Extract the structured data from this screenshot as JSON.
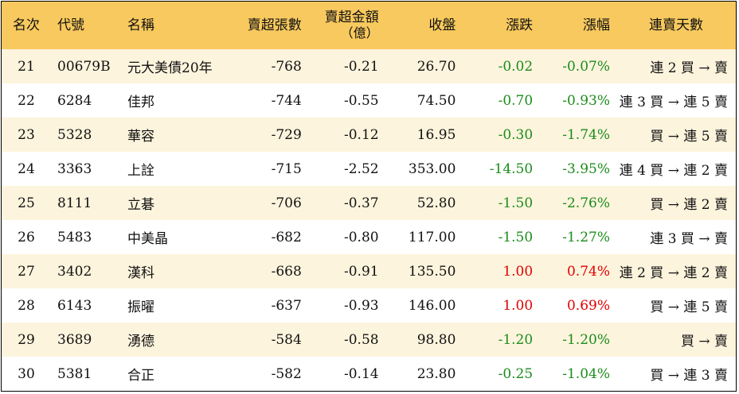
{
  "headers": {
    "rank": "名次",
    "code": "代號",
    "name": "名稱",
    "sell_vol": "賣超張數",
    "sell_amt_line1": "賣超金額",
    "sell_amt_line2": "（億）",
    "close": "收盤",
    "change": "漲跌",
    "pct": "漲幅",
    "streak": "連賣天數"
  },
  "rows": [
    {
      "rank": "21",
      "code": "00679B",
      "name": "元大美債20年",
      "sell_vol": "-768",
      "sell_amt": "-0.21",
      "close": "26.70",
      "change": "-0.02",
      "pct": "-0.07%",
      "streak": "連 2 買 → 賣",
      "dir": "neg"
    },
    {
      "rank": "22",
      "code": "6284",
      "name": "佳邦",
      "sell_vol": "-744",
      "sell_amt": "-0.55",
      "close": "74.50",
      "change": "-0.70",
      "pct": "-0.93%",
      "streak": "連 3 買 → 連 5 賣",
      "dir": "neg"
    },
    {
      "rank": "23",
      "code": "5328",
      "name": "華容",
      "sell_vol": "-729",
      "sell_amt": "-0.12",
      "close": "16.95",
      "change": "-0.30",
      "pct": "-1.74%",
      "streak": "買 → 連 5 賣",
      "dir": "neg"
    },
    {
      "rank": "24",
      "code": "3363",
      "name": "上詮",
      "sell_vol": "-715",
      "sell_amt": "-2.52",
      "close": "353.00",
      "change": "-14.50",
      "pct": "-3.95%",
      "streak": "連 4 買 → 連 2 賣",
      "dir": "neg"
    },
    {
      "rank": "25",
      "code": "8111",
      "name": "立碁",
      "sell_vol": "-706",
      "sell_amt": "-0.37",
      "close": "52.80",
      "change": "-1.50",
      "pct": "-2.76%",
      "streak": "買 → 連 2 賣",
      "dir": "neg"
    },
    {
      "rank": "26",
      "code": "5483",
      "name": "中美晶",
      "sell_vol": "-682",
      "sell_amt": "-0.80",
      "close": "117.00",
      "change": "-1.50",
      "pct": "-1.27%",
      "streak": "連 3 買 → 賣",
      "dir": "neg"
    },
    {
      "rank": "27",
      "code": "3402",
      "name": "漢科",
      "sell_vol": "-668",
      "sell_amt": "-0.91",
      "close": "135.50",
      "change": "1.00",
      "pct": "0.74%",
      "streak": "連 2 買 → 連 2 賣",
      "dir": "pos"
    },
    {
      "rank": "28",
      "code": "6143",
      "name": "振曜",
      "sell_vol": "-637",
      "sell_amt": "-0.93",
      "close": "146.00",
      "change": "1.00",
      "pct": "0.69%",
      "streak": "買 → 連 5 賣",
      "dir": "pos"
    },
    {
      "rank": "29",
      "code": "3689",
      "name": "湧德",
      "sell_vol": "-584",
      "sell_amt": "-0.58",
      "close": "98.80",
      "change": "-1.20",
      "pct": "-1.20%",
      "streak": "買 → 賣",
      "dir": "neg"
    },
    {
      "rank": "30",
      "code": "5381",
      "name": "合正",
      "sell_vol": "-582",
      "sell_amt": "-0.14",
      "close": "23.80",
      "change": "-0.25",
      "pct": "-1.04%",
      "streak": "買 → 連 3 賣",
      "dir": "neg"
    }
  ],
  "colors": {
    "header_bg": "#f8c95e",
    "stripe_bg": "#fdf4dd",
    "down": "#1b8c1b",
    "up": "#e00000"
  }
}
